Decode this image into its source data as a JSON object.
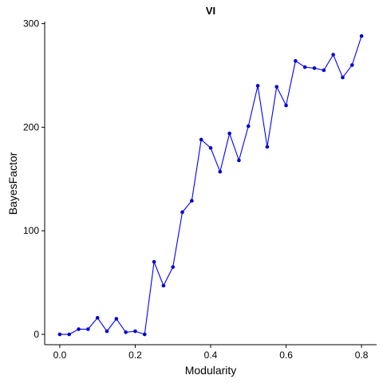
{
  "chart_data": {
    "type": "line",
    "title": "VI",
    "xlabel": "Modularity",
    "ylabel": "BayesFactor",
    "xlim": [
      -0.04,
      0.84
    ],
    "ylim": [
      -10,
      302
    ],
    "xticks": [
      0.0,
      0.2,
      0.4,
      0.6,
      0.8
    ],
    "xtick_labels": [
      "0.0",
      "0.2",
      "0.4",
      "0.6",
      "0.8"
    ],
    "yticks": [
      0,
      100,
      200,
      300
    ],
    "ytick_labels": [
      "0",
      "100",
      "200",
      "300"
    ],
    "grid": false,
    "legend": "none",
    "line_color": "#0000ff",
    "point_color": "#0000cd",
    "series": [
      {
        "x": [
          0.0,
          0.025,
          0.05,
          0.075,
          0.1,
          0.125,
          0.15,
          0.175,
          0.2,
          0.225,
          0.25,
          0.275,
          0.3,
          0.325,
          0.35,
          0.375,
          0.4,
          0.425,
          0.45,
          0.475,
          0.5,
          0.525,
          0.55,
          0.575,
          0.6,
          0.625,
          0.65,
          0.675,
          0.7,
          0.725,
          0.75,
          0.775,
          0.8
        ],
        "y": [
          0,
          0,
          5,
          5,
          16,
          3,
          15,
          2,
          3,
          0,
          70,
          47,
          65,
          118,
          129,
          188,
          180,
          157,
          194,
          168,
          201,
          240,
          181,
          239,
          221,
          264,
          258,
          257,
          255,
          270,
          248,
          260,
          288
        ]
      }
    ]
  }
}
